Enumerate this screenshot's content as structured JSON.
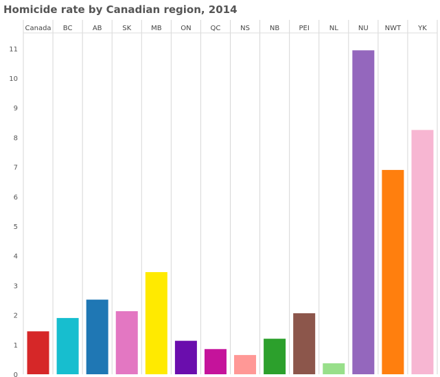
{
  "chart_data": {
    "type": "bar",
    "title": "Homicide rate by Canadian region, 2014",
    "xlabel": "",
    "ylabel": "",
    "ylim": [
      0,
      11.5
    ],
    "yticks": [
      0,
      1,
      2,
      3,
      4,
      5,
      6,
      7,
      8,
      9,
      10,
      11
    ],
    "grid": {
      "vertical": true,
      "horizontal": false
    },
    "legend": "none",
    "categories": [
      "Canada",
      "BC",
      "AB",
      "SK",
      "MB",
      "ON",
      "QC",
      "NS",
      "NB",
      "PEI",
      "NL",
      "NU",
      "NWT",
      "YK"
    ],
    "values": [
      1.45,
      1.9,
      2.52,
      2.13,
      3.45,
      1.13,
      0.85,
      0.65,
      1.2,
      2.06,
      0.37,
      10.94,
      6.9,
      8.25
    ],
    "colors": [
      "#d62728",
      "#17becf",
      "#1f77b4",
      "#e377c2",
      "#ffea00",
      "#6a0dad",
      "#c5139b",
      "#ff9896",
      "#2ca02c",
      "#8c564b",
      "#98df8a",
      "#9467bd",
      "#ff7f0e",
      "#f7b6d2"
    ]
  }
}
